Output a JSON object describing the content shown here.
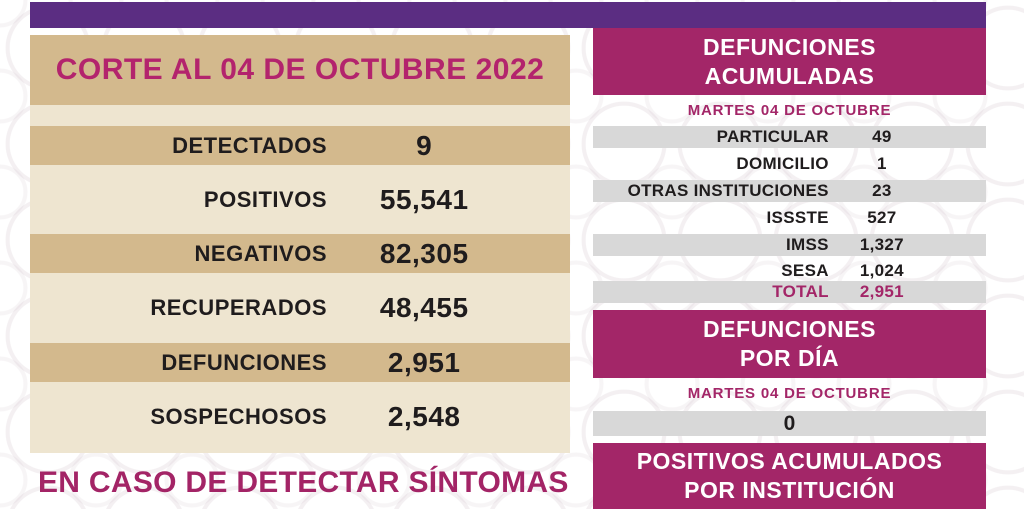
{
  "colors": {
    "top_bar_purple": "#5b2d82",
    "magenta_block": "#a32668",
    "title_magenta": "#b3246d",
    "footer_magenta": "#a32466",
    "tan_stripe": "#d3b98d",
    "cream_panel": "#eee5d0",
    "gray_stripe": "#d8d8d8",
    "dark_text": "#1f1c1d"
  },
  "left_panel": {
    "title": "CORTE AL 04 DE OCTUBRE 2022",
    "rows": [
      {
        "label": "DETECTADOS",
        "value": "9"
      },
      {
        "label": "POSITIVOS",
        "value": "55,541"
      },
      {
        "label": "NEGATIVOS",
        "value": "82,305"
      },
      {
        "label": "RECUPERADOS",
        "value": "48,455"
      },
      {
        "label": "DEFUNCIONES",
        "value": "2,951"
      },
      {
        "label": "SOSPECHOSOS",
        "value": "2,548"
      }
    ],
    "footer": "EN CASO DE DETECTAR SÍNTOMAS"
  },
  "right_panel": {
    "deaths_accumulated": {
      "header_line1": "DEFUNCIONES",
      "header_line2": "ACUMULADAS",
      "date": "MARTES 04 DE OCTUBRE",
      "rows": [
        {
          "label": "PARTICULAR",
          "value": "49"
        },
        {
          "label": "DOMICILIO",
          "value": "1"
        },
        {
          "label": "OTRAS INSTITUCIONES",
          "value": "23"
        },
        {
          "label": "ISSSTE",
          "value": "527"
        },
        {
          "label": "IMSS",
          "value": "1,327"
        },
        {
          "label": "SESA",
          "value": "1,024"
        },
        {
          "label": "TOTAL",
          "value": "2,951"
        }
      ]
    },
    "deaths_per_day": {
      "header_line1": "DEFUNCIONES",
      "header_line2": "POR DÍA",
      "date": "MARTES 04 DE OCTUBRE",
      "value": "0"
    },
    "positives_by_institution": {
      "header_line1": "POSITIVOS ACUMULADOS",
      "header_line2": "POR INSTITUCIÓN"
    }
  },
  "chart_data": [
    {
      "type": "table",
      "title": "CORTE AL 04 DE OCTUBRE 2022",
      "categories": [
        "DETECTADOS",
        "POSITIVOS",
        "NEGATIVOS",
        "RECUPERADOS",
        "DEFUNCIONES",
        "SOSPECHOSOS"
      ],
      "values": [
        9,
        55541,
        82305,
        48455,
        2951,
        2548
      ]
    },
    {
      "type": "table",
      "title": "DEFUNCIONES ACUMULADAS — MARTES 04 DE OCTUBRE",
      "categories": [
        "PARTICULAR",
        "DOMICILIO",
        "OTRAS INSTITUCIONES",
        "ISSSTE",
        "IMSS",
        "SESA",
        "TOTAL"
      ],
      "values": [
        49,
        1,
        23,
        527,
        1327,
        1024,
        2951
      ]
    },
    {
      "type": "table",
      "title": "DEFUNCIONES POR DÍA — MARTES 04 DE OCTUBRE",
      "categories": [
        "DEFUNCIONES POR DÍA"
      ],
      "values": [
        0
      ]
    }
  ]
}
